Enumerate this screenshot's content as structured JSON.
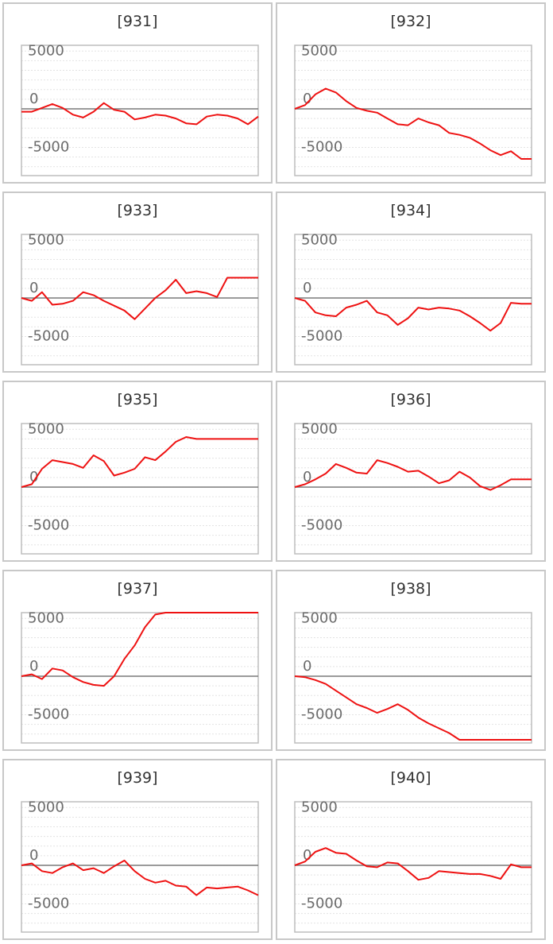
{
  "colors": {
    "line": "#ee1111",
    "axis_zero": "#7a7a7a",
    "plot_border": "#bdbdbd",
    "gridline": "#e3e3e3",
    "tick_text": "#6b6b6b",
    "title_text": "#333333",
    "panel_border": "#c8c8c8"
  },
  "chart_data": [
    {
      "type": "line",
      "title": "[931]",
      "y_ticks": [
        "5000",
        "0",
        "-5000"
      ],
      "ylim": [
        -6600,
        6600
      ],
      "grid": true,
      "x": [
        0,
        1,
        2,
        3,
        4,
        5,
        6,
        7,
        8,
        9,
        10,
        11,
        12,
        13,
        14,
        15,
        16,
        17,
        18,
        19,
        20,
        21,
        22,
        23
      ],
      "values": [
        -300,
        -300,
        100,
        500,
        100,
        -600,
        -900,
        -300,
        600,
        -100,
        -300,
        -1100,
        -900,
        -600,
        -700,
        -1000,
        -1500,
        -1600,
        -800,
        -600,
        -700,
        -1000,
        -1600,
        -800
      ]
    },
    {
      "type": "line",
      "title": "[932]",
      "y_ticks": [
        "5000",
        "0",
        "-5000"
      ],
      "ylim": [
        -6600,
        6600
      ],
      "grid": true,
      "x": [
        0,
        1,
        2,
        3,
        4,
        5,
        6,
        7,
        8,
        9,
        10,
        11,
        12,
        13,
        14,
        15,
        16,
        17,
        18,
        19,
        20,
        21,
        22,
        23
      ],
      "values": [
        0,
        400,
        1500,
        2100,
        1700,
        800,
        100,
        -200,
        -400,
        -1000,
        -1600,
        -1700,
        -1000,
        -1400,
        -1700,
        -2500,
        -2700,
        -3000,
        -3600,
        -4300,
        -4800,
        -4400,
        -5200,
        -5200
      ]
    },
    {
      "type": "line",
      "title": "[933]",
      "y_ticks": [
        "5000",
        "0",
        "-5000"
      ],
      "ylim": [
        -6600,
        6600
      ],
      "grid": true,
      "x": [
        0,
        1,
        2,
        3,
        4,
        5,
        6,
        7,
        8,
        9,
        10,
        11,
        12,
        13,
        14,
        15,
        16,
        17,
        18,
        19,
        20,
        21,
        22,
        23
      ],
      "values": [
        0,
        -300,
        600,
        -700,
        -600,
        -300,
        600,
        300,
        -300,
        -800,
        -1300,
        -2200,
        -1100,
        0,
        800,
        1900,
        500,
        700,
        500,
        100,
        2100,
        2100,
        2100,
        2100
      ]
    },
    {
      "type": "line",
      "title": "[934]",
      "y_ticks": [
        "5000",
        "0",
        "-5000"
      ],
      "ylim": [
        -6600,
        6600
      ],
      "grid": true,
      "x": [
        0,
        1,
        2,
        3,
        4,
        5,
        6,
        7,
        8,
        9,
        10,
        11,
        12,
        13,
        14,
        15,
        16,
        17,
        18,
        19,
        20,
        21,
        22,
        23
      ],
      "values": [
        0,
        -300,
        -1500,
        -1800,
        -1900,
        -1000,
        -700,
        -300,
        -1500,
        -1800,
        -2800,
        -2100,
        -1000,
        -1200,
        -1000,
        -1100,
        -1300,
        -1900,
        -2600,
        -3400,
        -2600,
        -500,
        -600,
        -600
      ]
    },
    {
      "type": "line",
      "title": "[935]",
      "y_ticks": [
        "5000",
        "0",
        "-5000"
      ],
      "ylim": [
        -6600,
        6600
      ],
      "grid": true,
      "x": [
        0,
        1,
        2,
        3,
        4,
        5,
        6,
        7,
        8,
        9,
        10,
        11,
        12,
        13,
        14,
        15,
        16,
        17,
        18,
        19,
        20,
        21,
        22,
        23
      ],
      "values": [
        0,
        300,
        1900,
        2800,
        2600,
        2400,
        2000,
        3300,
        2700,
        1200,
        1500,
        1900,
        3100,
        2800,
        3700,
        4700,
        5200,
        5000,
        5000,
        5000,
        5000,
        5000,
        5000,
        5000
      ]
    },
    {
      "type": "line",
      "title": "[936]",
      "y_ticks": [
        "5000",
        "0",
        "-5000"
      ],
      "ylim": [
        -6600,
        6600
      ],
      "grid": true,
      "x": [
        0,
        1,
        2,
        3,
        4,
        5,
        6,
        7,
        8,
        9,
        10,
        11,
        12,
        13,
        14,
        15,
        16,
        17,
        18,
        19,
        20,
        21,
        22,
        23
      ],
      "values": [
        0,
        300,
        800,
        1400,
        2400,
        2000,
        1500,
        1400,
        2800,
        2500,
        2100,
        1600,
        1700,
        1100,
        400,
        700,
        1600,
        1000,
        100,
        -300,
        200,
        800,
        800,
        800
      ]
    },
    {
      "type": "line",
      "title": "[937]",
      "y_ticks": [
        "5000",
        "0",
        "-5000"
      ],
      "ylim": [
        -6600,
        6600
      ],
      "grid": true,
      "x": [
        0,
        1,
        2,
        3,
        4,
        5,
        6,
        7,
        8,
        9,
        10,
        11,
        12,
        13,
        14,
        15,
        16,
        17,
        18,
        19,
        20,
        21,
        22,
        23
      ],
      "values": [
        0,
        200,
        -300,
        800,
        600,
        -100,
        -600,
        -900,
        -1000,
        0,
        1800,
        3200,
        5100,
        6400,
        6600,
        6600,
        6600,
        6600,
        6600,
        6600,
        6600,
        6600,
        6600,
        6600
      ]
    },
    {
      "type": "line",
      "title": "[938]",
      "y_ticks": [
        "5000",
        "0",
        "-5000"
      ],
      "ylim": [
        -6600,
        6600
      ],
      "grid": true,
      "x": [
        0,
        1,
        2,
        3,
        4,
        5,
        6,
        7,
        8,
        9,
        10,
        11,
        12,
        13,
        14,
        15,
        16,
        17,
        18,
        19,
        20,
        21,
        22,
        23
      ],
      "values": [
        0,
        -100,
        -400,
        -800,
        -1500,
        -2200,
        -2900,
        -3300,
        -3800,
        -3400,
        -2900,
        -3500,
        -4300,
        -4900,
        -5400,
        -5900,
        -6600,
        -6600,
        -6600,
        -6600,
        -6600,
        -6600,
        -6600,
        -6600
      ]
    },
    {
      "type": "line",
      "title": "[939]",
      "y_ticks": [
        "5000",
        "0",
        "-5000"
      ],
      "ylim": [
        -6600,
        6600
      ],
      "grid": true,
      "x": [
        0,
        1,
        2,
        3,
        4,
        5,
        6,
        7,
        8,
        9,
        10,
        11,
        12,
        13,
        14,
        15,
        16,
        17,
        18,
        19,
        20,
        21,
        22,
        23
      ],
      "values": [
        0,
        200,
        -600,
        -800,
        -200,
        200,
        -500,
        -300,
        -800,
        -100,
        500,
        -600,
        -1400,
        -1800,
        -1600,
        -2100,
        -2200,
        -3100,
        -2300,
        -2400,
        -2300,
        -2200,
        -2600,
        -3100
      ]
    },
    {
      "type": "line",
      "title": "[940]",
      "y_ticks": [
        "5000",
        "0",
        "-5000"
      ],
      "ylim": [
        -6600,
        6600
      ],
      "grid": true,
      "x": [
        0,
        1,
        2,
        3,
        4,
        5,
        6,
        7,
        8,
        9,
        10,
        11,
        12,
        13,
        14,
        15,
        16,
        17,
        18,
        19,
        20,
        21,
        22,
        23
      ],
      "values": [
        0,
        400,
        1400,
        1800,
        1300,
        1200,
        500,
        -100,
        -200,
        300,
        200,
        -600,
        -1500,
        -1300,
        -600,
        -700,
        -800,
        -900,
        -900,
        -1100,
        -1400,
        100,
        -200,
        -200
      ]
    }
  ]
}
